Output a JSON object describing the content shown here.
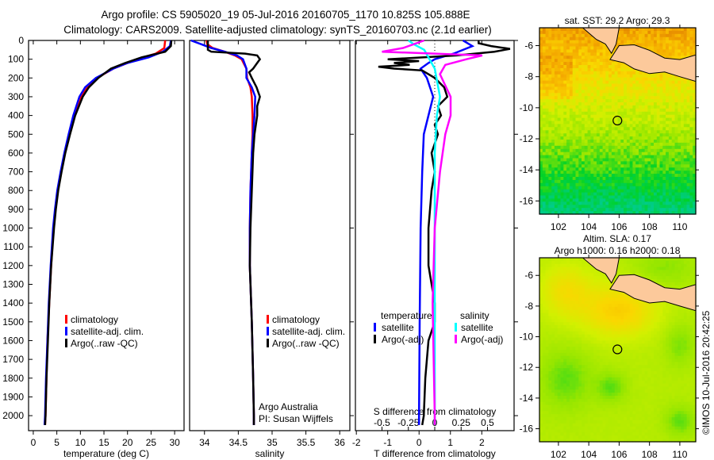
{
  "title_line1": "Argo profile: CS 5905020_19 05-Jul-2016 20160705_1170 10.825S 105.888E",
  "title_line2": "Climatology: CARS2009. Satellite-adjusted climatology: synTS_20160703.nc (2.1d earlier)",
  "colors": {
    "climatology": "#ff0000",
    "satellite": "#0000ff",
    "argo": "#000000",
    "sal_sat": "#00ffff",
    "sal_argo": "#ff00ff",
    "land": "#fcc99b"
  },
  "chart_data": [
    {
      "type": "line",
      "id": "temperature",
      "xlabel": "temperature (deg C)",
      "xlim": [
        -1,
        32
      ],
      "ylim": [
        2080,
        0
      ],
      "xticks": [
        0,
        5,
        10,
        15,
        20,
        25,
        30
      ],
      "xtick_labels": [
        "0",
        "5",
        "10",
        "15",
        "20",
        "25",
        "30"
      ],
      "yticks": [
        0,
        100,
        200,
        300,
        400,
        500,
        600,
        700,
        800,
        900,
        1000,
        1100,
        1200,
        1300,
        1400,
        1500,
        1600,
        1700,
        1800,
        1900,
        2000
      ],
      "ytick_labels": [
        "0",
        "100",
        "200",
        "300",
        "400",
        "500",
        "600",
        "700",
        "800",
        "900",
        "1000",
        "1100",
        "1200",
        "1300",
        "1400",
        "1500",
        "1600",
        "1700",
        "1800",
        "1900",
        "2000"
      ],
      "legend": [
        "climatology",
        "satellite-adj. clim.",
        "Argo(..raw -QC)"
      ],
      "series": [
        {
          "name": "climatology",
          "color": "climatology",
          "depth": [
            0,
            40,
            70,
            100,
            150,
            200,
            250,
            300,
            400,
            500,
            600,
            700,
            800,
            900,
            1000,
            1200,
            1400,
            1600,
            1800,
            2000,
            2050
          ],
          "values": [
            28.0,
            27.8,
            26.0,
            22.0,
            17.0,
            13.5,
            11.5,
            10.2,
            8.7,
            7.6,
            6.7,
            5.9,
            5.2,
            4.7,
            4.3,
            3.8,
            3.4,
            3.0,
            2.8,
            2.6,
            2.5
          ]
        },
        {
          "name": "satellite-adj. clim.",
          "color": "satellite",
          "depth": [
            0,
            30,
            60,
            90,
            120,
            150,
            200,
            250,
            300,
            400,
            500,
            600,
            700,
            800,
            900,
            1000,
            1200,
            1400,
            1600,
            1800,
            2000,
            2050
          ],
          "values": [
            29.2,
            29.0,
            27.5,
            24.5,
            20.0,
            17.0,
            13.3,
            11.0,
            9.8,
            8.5,
            7.5,
            6.6,
            5.8,
            5.1,
            4.6,
            4.2,
            3.7,
            3.3,
            3.0,
            2.7,
            2.5,
            2.4
          ]
        },
        {
          "name": "Argo(..raw -QC)",
          "color": "argo",
          "depth": [
            0,
            30,
            60,
            90,
            120,
            150,
            200,
            250,
            300,
            400,
            500,
            600,
            700,
            800,
            900,
            1000,
            1200,
            1400,
            1600,
            1800,
            2000,
            2050
          ],
          "values": [
            29.3,
            29.2,
            28.0,
            23.0,
            19.5,
            16.5,
            13.8,
            11.8,
            10.5,
            8.9,
            7.8,
            6.8,
            6.0,
            5.3,
            4.8,
            4.4,
            3.8,
            3.4,
            3.1,
            2.8,
            2.6,
            2.5
          ]
        }
      ]
    },
    {
      "type": "line",
      "id": "salinity",
      "xlabel": "salinity",
      "xlim": [
        33.78,
        36.15
      ],
      "ylim": [
        2080,
        0
      ],
      "xticks": [
        34,
        34.5,
        35,
        35.5,
        36
      ],
      "xtick_labels": [
        "34",
        "34.5",
        "35",
        "35.5",
        "36"
      ],
      "legend": [
        "climatology",
        "satellite-adj. clim.",
        "Argo(..raw -QC)"
      ],
      "annotation": [
        "Argo Australia",
        "PI: Susan Wijffels"
      ],
      "series": [
        {
          "name": "climatology",
          "color": "climatology",
          "depth": [
            0,
            20,
            40,
            60,
            80,
            100,
            150,
            200,
            250,
            300,
            400,
            500,
            600,
            800,
            1000,
            1200,
            1500,
            1800,
            2000,
            2050
          ],
          "values": [
            34.03,
            34.04,
            34.12,
            34.3,
            34.45,
            34.55,
            34.62,
            34.63,
            34.68,
            34.7,
            34.71,
            34.71,
            34.7,
            34.68,
            34.67,
            34.67,
            34.7,
            34.72,
            34.73,
            34.73
          ]
        },
        {
          "name": "satellite-adj. clim.",
          "color": "satellite",
          "depth": [
            0,
            20,
            40,
            60,
            80,
            100,
            150,
            200,
            250,
            300,
            400,
            500,
            600,
            800,
            1000,
            1200,
            1500,
            1800,
            2000,
            2050
          ],
          "values": [
            33.8,
            33.95,
            34.1,
            34.3,
            34.48,
            34.57,
            34.62,
            34.62,
            34.7,
            34.75,
            34.74,
            34.72,
            34.7,
            34.68,
            34.67,
            34.67,
            34.7,
            34.72,
            34.73,
            34.73
          ]
        },
        {
          "name": "Argo(..raw -QC)",
          "color": "argo",
          "depth": [
            0,
            50,
            60,
            70,
            80,
            100,
            120,
            150,
            170,
            200,
            250,
            300,
            350,
            400,
            500,
            600,
            800,
            1000,
            1200,
            1500,
            1800,
            2000,
            2050
          ],
          "values": [
            34.05,
            34.05,
            34.1,
            34.6,
            34.78,
            34.82,
            34.78,
            34.72,
            34.66,
            34.7,
            34.77,
            34.82,
            34.78,
            34.78,
            34.74,
            34.72,
            34.7,
            34.68,
            34.67,
            34.7,
            34.72,
            34.73,
            34.73
          ]
        }
      ]
    },
    {
      "type": "line",
      "id": "difference",
      "xlabel": "T difference from climatology",
      "xlabel_top": "S difference from climatology",
      "xlim": [
        -2.03,
        3.03
      ],
      "ylim": [
        2080,
        0
      ],
      "xticks": [
        -2,
        -1,
        0,
        1,
        2
      ],
      "xtick_labels": [
        "-2",
        "-1",
        "0",
        "1",
        "2"
      ],
      "sticks": [
        -0.5,
        -0.25,
        0,
        0.25,
        0.5
      ],
      "stick_labels": [
        "-0.5",
        "-0.25",
        "0",
        "0.25",
        "0.5"
      ],
      "legend_temperature": {
        "title": "temperature",
        "items": [
          "satellite",
          "Argo(-adj)"
        ]
      },
      "legend_salinity": {
        "title": "salinity",
        "items": [
          "satellite",
          "Argo(-adj)"
        ]
      },
      "series": [
        {
          "name": "T satellite",
          "color": "satellite",
          "axis": "T",
          "depth": [
            0,
            30,
            70,
            100,
            120,
            150,
            200,
            300,
            400,
            500,
            700,
            1000,
            1500,
            2000,
            2050
          ],
          "values": [
            1.4,
            1.7,
            1.1,
            0.5,
            0.3,
            0.05,
            0.25,
            0.45,
            0.3,
            0.15,
            0.1,
            0.05,
            0.02,
            0.0,
            0.0
          ]
        },
        {
          "name": "T Argo(-adj)",
          "color": "argo",
          "axis": "T",
          "depth": [
            0,
            15,
            30,
            45,
            60,
            80,
            95,
            100,
            110,
            120,
            130,
            140,
            150,
            160,
            200,
            250,
            300,
            350,
            400,
            450,
            500,
            600,
            700,
            800,
            1000,
            1200,
            1400,
            1500,
            1600,
            1800,
            2000,
            2050
          ],
          "values": [
            1.9,
            1.9,
            2.3,
            2.9,
            2.4,
            1.2,
            -0.4,
            -1.0,
            0.0,
            -0.8,
            -0.3,
            -1.3,
            -0.8,
            0.1,
            0.5,
            0.8,
            0.9,
            0.6,
            0.7,
            0.5,
            0.6,
            0.4,
            0.5,
            0.4,
            0.3,
            0.3,
            0.5,
            0.5,
            0.3,
            0.2,
            0.15,
            0.1
          ]
        },
        {
          "name": "S satellite",
          "color": "sal_sat",
          "axis": "S",
          "depth": [
            0,
            20,
            50,
            100,
            150,
            300,
            400,
            600,
            1000,
            2000,
            2050
          ],
          "values": [
            -0.25,
            -0.2,
            -0.1,
            -0.05,
            0.0,
            0.05,
            0.02,
            0.0,
            0.0,
            0.0,
            0.0
          ]
        },
        {
          "name": "S Argo(-adj)",
          "color": "sal_argo",
          "axis": "S",
          "depth": [
            0,
            40,
            60,
            80,
            100,
            130,
            180,
            300,
            400,
            500,
            700,
            1000,
            1400,
            2000,
            2050
          ],
          "values": [
            -0.1,
            -0.3,
            -0.5,
            0.45,
            0.3,
            0.1,
            0.05,
            0.15,
            0.15,
            0.1,
            0.05,
            0.0,
            -0.02,
            0.0,
            0.0
          ]
        }
      ]
    }
  ],
  "maps": [
    {
      "id": "sst",
      "title": [
        "sat. SST: 29.2 Argo: 29.3"
      ],
      "xticks": [
        102,
        104,
        106,
        108,
        110
      ],
      "yticks": [
        -6,
        -8,
        -10,
        -12,
        -14,
        -16
      ],
      "argo_lon": 105.888,
      "argo_lat": -10.825
    },
    {
      "id": "sla",
      "title": [
        "Altim. SLA: 0.17",
        "Argo h1000: 0.16 h2000: 0.18"
      ],
      "xticks": [
        102,
        104,
        106,
        108,
        110
      ],
      "yticks": [
        -6,
        -8,
        -10,
        -12,
        -14,
        -16
      ],
      "argo_lon": 105.888,
      "argo_lat": -10.825
    }
  ],
  "credit": "©IMOS 10-Jul-2016 20:42:25"
}
